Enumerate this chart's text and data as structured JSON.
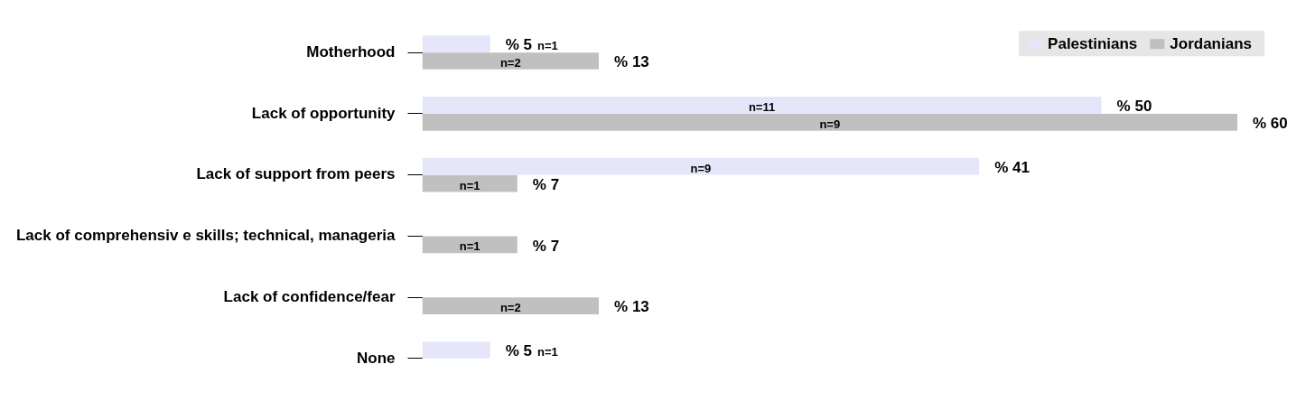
{
  "chart_data": {
    "type": "bar",
    "orientation": "horizontal",
    "legend": "top right",
    "tick_labels": "y",
    "categories": [
      "Motherhood",
      "Lack of opportunity",
      "Lack of support from peers",
      "Lack of comprehensiv e skills; technical, manageria",
      "Lack of confidence/fear",
      "None"
    ],
    "series": [
      {
        "name": "Palestinians",
        "color": "#e6e6fa",
        "values": [
          5,
          50,
          41,
          null,
          null,
          5
        ],
        "value_labels": [
          "% 5",
          "% 50",
          "% 41",
          null,
          null,
          "% 5"
        ]
      },
      {
        "name": "Jordanians",
        "color": "#c0c0c0",
        "values": [
          13,
          60,
          7,
          7,
          13,
          null
        ],
        "value_labels": [
          "% 13",
          "% 60",
          "% 7",
          "% 7",
          "% 13",
          null
        ]
      }
    ],
    "annotations": [
      "n=1",
      "n=2",
      "n=11",
      "n=9",
      "n=9",
      "n=1",
      "n=1",
      "n=2",
      "n=1"
    ]
  }
}
